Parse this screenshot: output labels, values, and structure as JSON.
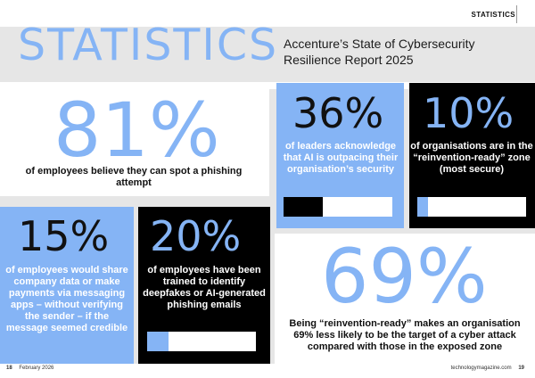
{
  "header": {
    "section_tag": "STATISTICS",
    "title": "STATISTICS",
    "report_title": "Accenture’s State of Cybersecurity Resilience Report 2025"
  },
  "stats": [
    {
      "id": "81",
      "value": "81%",
      "text": "of employees believe they can spot a phishing attempt"
    },
    {
      "id": "36",
      "value": "36%",
      "text": "of leaders acknowledge that AI is outpacing their organisation’s security",
      "bar": {
        "fraction": 0.36,
        "color": "#000000"
      }
    },
    {
      "id": "10",
      "value": "10%",
      "text": "of organisations are in the “reinvention-ready” zone (most secure)",
      "bar": {
        "fraction": 0.1,
        "color": "#85b4f5"
      }
    },
    {
      "id": "15",
      "value": "15%",
      "text": "of employees would share company data or make payments via messaging apps – without verifying the sender – if the message seemed credible"
    },
    {
      "id": "20",
      "value": "20%",
      "text": "of employees have been trained to identify deepfakes or AI-generated phishing emails",
      "bar": {
        "fraction": 0.2,
        "color": "#85b4f5"
      }
    },
    {
      "id": "69",
      "value": "69%",
      "text": "Being “reinvention-ready” makes an organisation 69% less likely to be the target of a cyber attack compared with those in the exposed zone"
    }
  ],
  "footer": {
    "left_page": "18",
    "left_text": "February 2026",
    "right_text": "technologymagazine.com",
    "right_page": "19"
  },
  "colors": {
    "accent_blue": "#85b4f5",
    "black": "#000000",
    "background": "#e6e6e6"
  }
}
